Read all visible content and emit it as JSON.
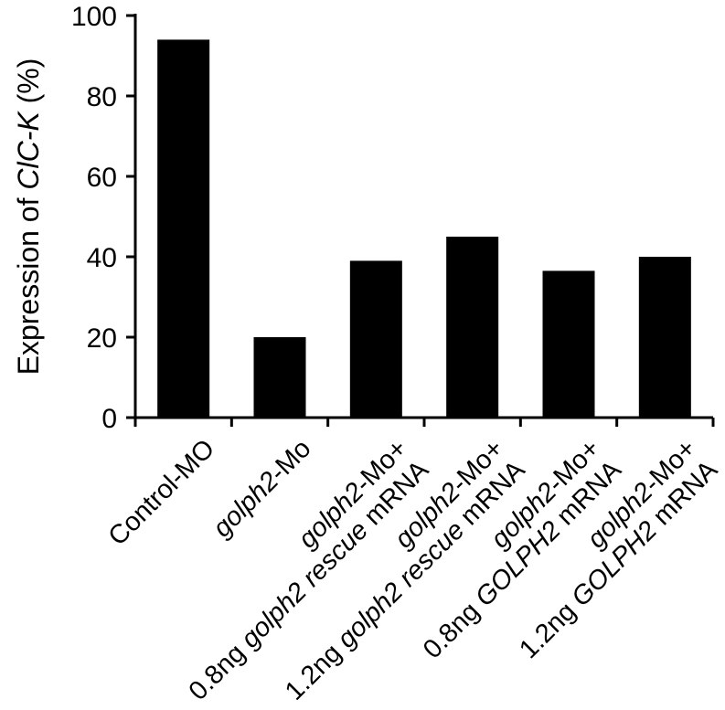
{
  "chart_data": {
    "type": "bar",
    "categories": [
      [
        {
          "text": "Control-MO",
          "italic": false
        }
      ],
      [
        {
          "text": "golph2",
          "italic": true
        },
        {
          "text": "-Mo",
          "italic": false
        }
      ],
      [
        {
          "text": "golph2",
          "italic": true
        },
        {
          "text": "-Mo+ ",
          "italic": false
        },
        {
          "text": "\n0.8ng ",
          "italic": false
        },
        {
          "text": "golph2 rescue",
          "italic": true
        },
        {
          "text": " mRNA",
          "italic": false
        }
      ],
      [
        {
          "text": "golph2",
          "italic": true
        },
        {
          "text": "-Mo+ ",
          "italic": false
        },
        {
          "text": "\n1.2ng ",
          "italic": false
        },
        {
          "text": "golph2 rescue",
          "italic": true
        },
        {
          "text": " mRNA",
          "italic": false
        }
      ],
      [
        {
          "text": "golph2",
          "italic": true
        },
        {
          "text": "-Mo+ ",
          "italic": false
        },
        {
          "text": "\n0.8ng ",
          "italic": false
        },
        {
          "text": "GOLPH2",
          "italic": true
        },
        {
          "text": " mRNA",
          "italic": false
        }
      ],
      [
        {
          "text": "golph2",
          "italic": true
        },
        {
          "text": "-Mo+ ",
          "italic": false
        },
        {
          "text": "\n1.2ng ",
          "italic": false
        },
        {
          "text": "GOLPH2",
          "italic": true
        },
        {
          "text": " mRNA",
          "italic": false
        }
      ]
    ],
    "values": [
      94,
      20,
      39,
      45,
      36.5,
      40
    ],
    "ylabel": [
      {
        "text": "Expression of ",
        "italic": false
      },
      {
        "text": "ClC-K",
        "italic": true
      },
      {
        "text": " (%)",
        "italic": false
      }
    ],
    "ylim": [
      0,
      100
    ],
    "yticks": [
      "0",
      "20",
      "40",
      "60",
      "80",
      "100"
    ],
    "bar_color": "#000000",
    "grid": false,
    "legend": "none"
  }
}
